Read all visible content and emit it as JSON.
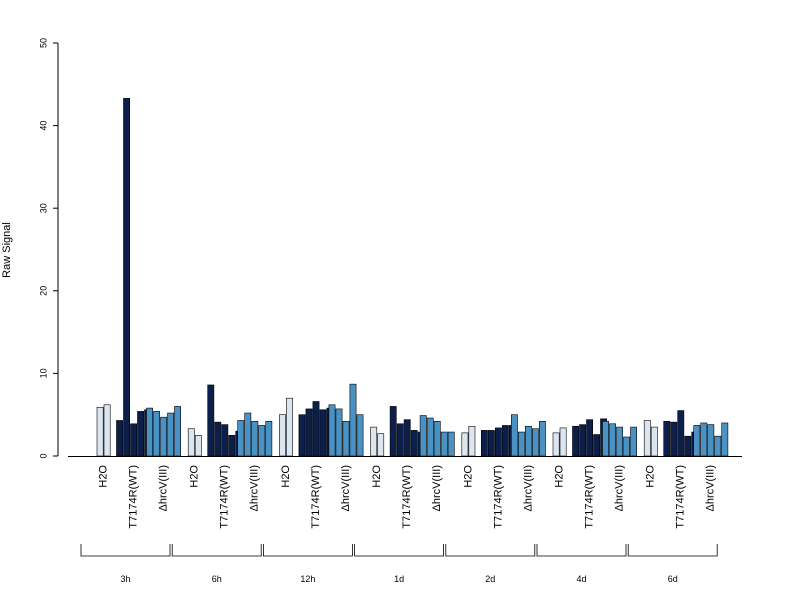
{
  "chart_data": {
    "type": "bar",
    "ylabel": "Raw Signal",
    "ylim": [
      0,
      50
    ],
    "yticks": [
      0,
      10,
      20,
      30,
      40,
      50
    ],
    "group_colors": {
      "H2O": "#dce6f0",
      "T7174R(WT)": "#0c1f4a",
      "ΔhrcV(III)": "#4a92c4"
    },
    "timepoints": [
      {
        "label": "3h",
        "groups": [
          {
            "name": "H2O",
            "values": [
              5.9,
              6.2
            ]
          },
          {
            "name": "T7174R(WT)",
            "values": [
              4.3,
              43.3,
              3.9,
              5.4,
              5.6
            ]
          },
          {
            "name": "ΔhrcV(III)",
            "values": [
              5.8,
              5.4,
              4.7,
              5.2,
              6.0
            ]
          }
        ]
      },
      {
        "label": "6h",
        "groups": [
          {
            "name": "H2O",
            "values": [
              3.3,
              2.5
            ]
          },
          {
            "name": "T7174R(WT)",
            "values": [
              8.6,
              4.1,
              3.8,
              2.5,
              3.0
            ]
          },
          {
            "name": "ΔhrcV(III)",
            "values": [
              4.3,
              5.2,
              4.2,
              3.7,
              4.2
            ]
          }
        ]
      },
      {
        "label": "12h",
        "groups": [
          {
            "name": "H2O",
            "values": [
              5.0,
              7.0
            ]
          },
          {
            "name": "T7174R(WT)",
            "values": [
              5.0,
              5.7,
              6.6,
              5.6,
              5.8
            ]
          },
          {
            "name": "ΔhrcV(III)",
            "values": [
              6.2,
              5.7,
              4.2,
              8.7,
              5.0
            ]
          }
        ]
      },
      {
        "label": "1d",
        "groups": [
          {
            "name": "H2O",
            "values": [
              3.5,
              2.7
            ]
          },
          {
            "name": "T7174R(WT)",
            "values": [
              6.0,
              3.9,
              4.4,
              3.1,
              2.9
            ]
          },
          {
            "name": "ΔhrcV(III)",
            "values": [
              4.9,
              4.6,
              4.2,
              2.9,
              2.9
            ]
          }
        ]
      },
      {
        "label": "2d",
        "groups": [
          {
            "name": "H2O",
            "values": [
              2.8,
              3.6
            ]
          },
          {
            "name": "T7174R(WT)",
            "values": [
              3.1,
              3.1,
              3.4,
              3.7,
              3.7
            ]
          },
          {
            "name": "ΔhrcV(III)",
            "values": [
              5.0,
              2.9,
              3.6,
              3.3,
              4.2
            ]
          }
        ]
      },
      {
        "label": "4d",
        "groups": [
          {
            "name": "H2O",
            "values": [
              2.8,
              3.4
            ]
          },
          {
            "name": "T7174R(WT)",
            "values": [
              3.6,
              3.8,
              4.4,
              2.6,
              4.5
            ]
          },
          {
            "name": "ΔhrcV(III)",
            "values": [
              4.2,
              3.9,
              3.5,
              2.3,
              3.5
            ]
          }
        ]
      },
      {
        "label": "6d",
        "groups": [
          {
            "name": "H2O",
            "values": [
              4.3,
              3.5
            ]
          },
          {
            "name": "T7174R(WT)",
            "values": [
              4.2,
              4.1,
              5.5,
              2.4,
              2.9
            ]
          },
          {
            "name": "ΔhrcV(III)",
            "values": [
              3.7,
              4.0,
              3.8,
              2.4,
              4.0
            ]
          }
        ]
      }
    ]
  }
}
